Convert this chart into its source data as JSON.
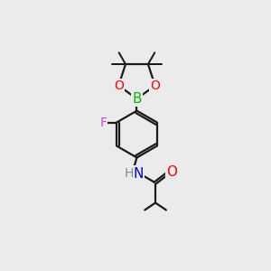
{
  "bg_color": "#ebebeb",
  "line_color": "#1a1a1a",
  "bond_width": 1.6,
  "font_size": 10,
  "atom_colors": {
    "B": "#00bb00",
    "O": "#ff0000",
    "F": "#cc44cc",
    "N": "#0000ee",
    "H": "#888888",
    "C": "#1a1a1a"
  }
}
